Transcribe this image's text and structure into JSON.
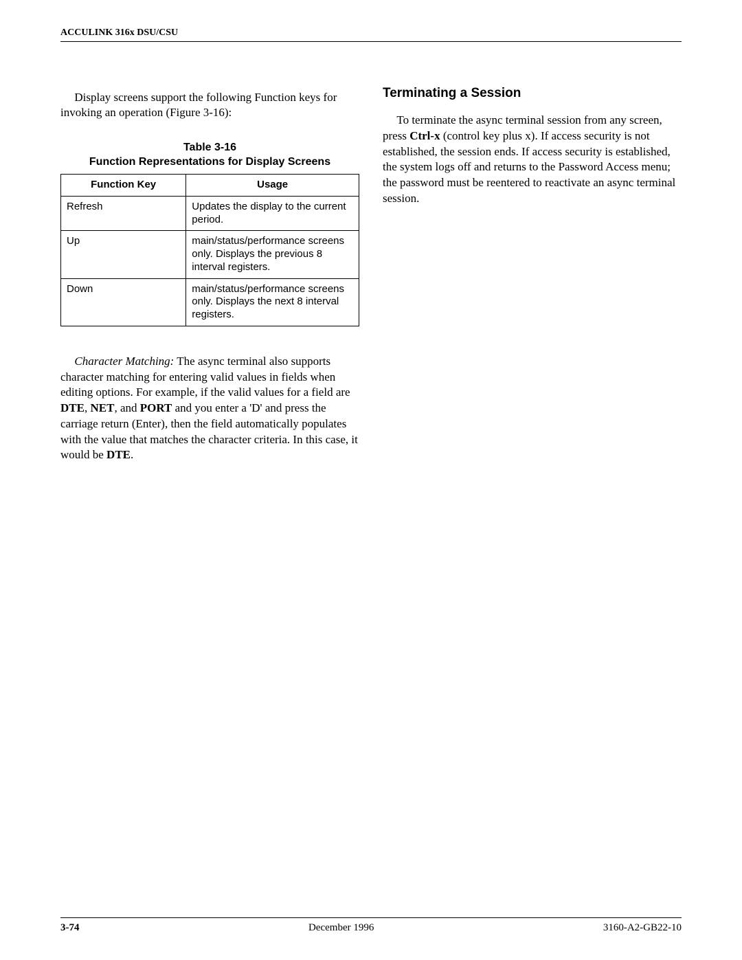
{
  "header": {
    "running_head": "ACCULINK 316x DSU/CSU"
  },
  "left": {
    "intro": "Display screens support the following Function keys for invoking an operation (Figure 3-16):",
    "table": {
      "caption_line1": "Table 3-16",
      "caption_line2": "Function Representations for Display Screens",
      "columns": [
        "Function Key",
        "Usage"
      ],
      "rows": [
        [
          "Refresh",
          "Updates the display to the current period."
        ],
        [
          "Up",
          "main/status/performance screens only. Displays the previous 8 interval registers."
        ],
        [
          "Down",
          "main/status/performance screens only. Displays the next 8 interval registers."
        ]
      ]
    },
    "char_match": {
      "lead": "Character Matching:",
      "before_bold": " The async terminal also supports character matching for entering valid values in fields when editing options. For example, if the valid values for a field are ",
      "b1": "DTE",
      "sep1": ", ",
      "b2": "NET",
      "sep2": ", and ",
      "b3": "PORT",
      "after_bold": " and you enter a 'D' and press the carriage return (Enter), then the field automatically populates with the value that matches the character criteria. In this case, it would be ",
      "b4": "DTE",
      "tail": "."
    }
  },
  "right": {
    "heading": "Terminating a Session",
    "para": {
      "p1": "To terminate the async terminal session from any screen, press ",
      "b1": "Ctrl-x",
      "p2": " (control key plus x). If access security is not established, the session ends. If access security is established, the system logs off and returns to the Password Access menu; the password must be reentered to reactivate an async terminal session."
    }
  },
  "footer": {
    "page": "3-74",
    "date": "December 1996",
    "doc": "3160-A2-GB22-10"
  }
}
